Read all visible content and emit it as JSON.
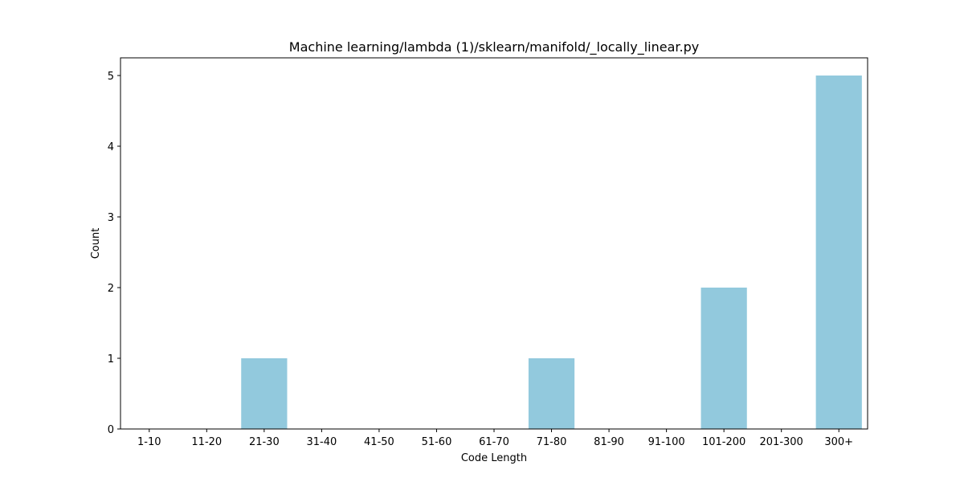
{
  "chart_data": {
    "type": "bar",
    "title": "Machine learning/lambda (1)/sklearn/manifold/_locally_linear.py",
    "xlabel": "Code Length",
    "ylabel": "Count",
    "categories": [
      "1-10",
      "11-20",
      "21-30",
      "31-40",
      "41-50",
      "51-60",
      "61-70",
      "71-80",
      "81-90",
      "91-100",
      "101-200",
      "201-300",
      "300+"
    ],
    "values": [
      0,
      0,
      1,
      0,
      0,
      0,
      0,
      1,
      0,
      0,
      2,
      0,
      5
    ],
    "ylim": [
      0,
      5.25
    ],
    "yticks": [
      0,
      1,
      2,
      3,
      4,
      5
    ],
    "bar_color": "#92c9dd",
    "grid": false,
    "legend": "none"
  }
}
